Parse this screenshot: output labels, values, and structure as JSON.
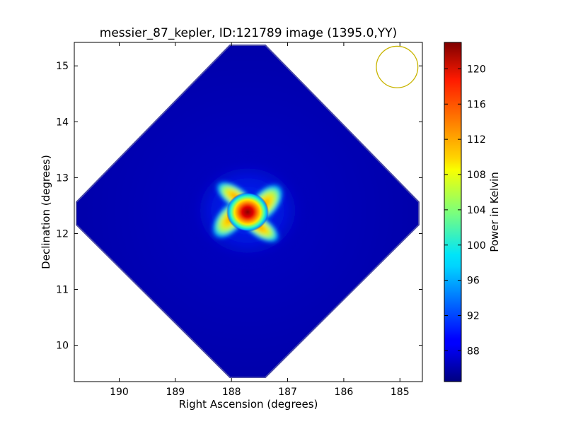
{
  "chart_data": {
    "type": "heatmap",
    "title": "messier_87_kepler, ID:121789 image (1395.0,YY)",
    "xlabel": "Right Ascension (degrees)",
    "ylabel": "Declination (degrees)",
    "xlim": [
      190.8,
      184.6
    ],
    "ylim": [
      9.35,
      15.42
    ],
    "x_inverted": true,
    "x_ticks": [
      190,
      189,
      188,
      187,
      186,
      185
    ],
    "x_tick_labels": [
      "190",
      "189",
      "188",
      "187",
      "186",
      "185"
    ],
    "y_ticks": [
      10,
      11,
      12,
      13,
      14,
      15
    ],
    "y_tick_labels": [
      "10",
      "11",
      "12",
      "13",
      "14",
      "15"
    ],
    "grid": false,
    "colormap": "jet",
    "colorbar": {
      "label": "Power in Kelvin",
      "range": [
        84.5,
        123
      ],
      "ticks": [
        88,
        92,
        96,
        100,
        104,
        108,
        112,
        116,
        120
      ],
      "tick_labels": [
        "88",
        "92",
        "96",
        "100",
        "104",
        "108",
        "112",
        "116",
        "120"
      ]
    },
    "field": {
      "shape": "diamond",
      "center_ra": 187.7,
      "center_dec": 12.4,
      "background_power": 86.5,
      "peak_power": 122,
      "peak_ra": 187.73,
      "peak_dec": 12.38
    },
    "beam": {
      "center_ra": 185.05,
      "center_dec": 14.98,
      "radius_deg": 0.37,
      "color": "#c8b400"
    }
  }
}
